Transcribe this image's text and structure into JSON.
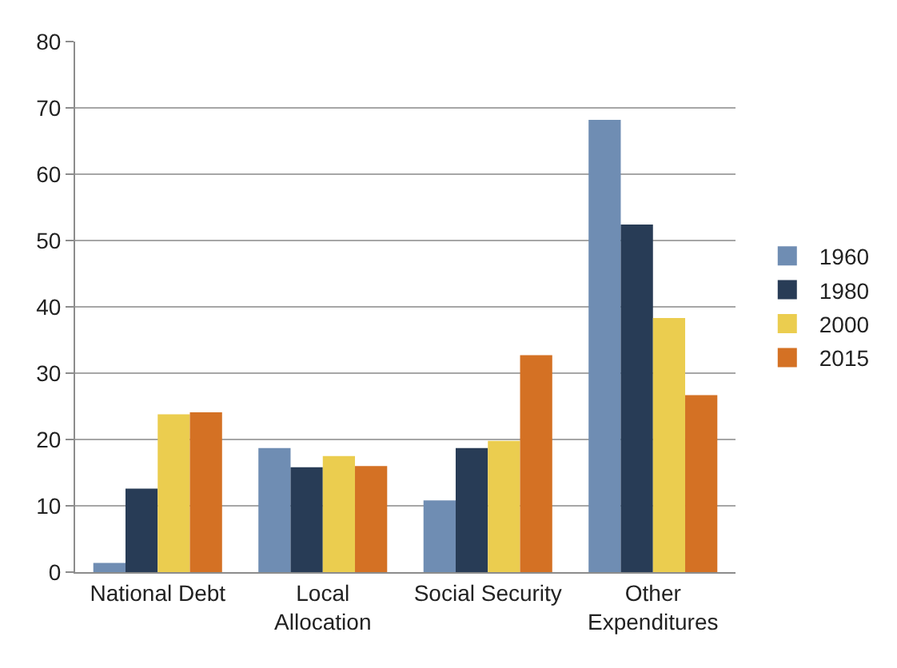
{
  "chart_data": {
    "type": "bar",
    "categories": [
      "National Debt",
      "Local\nAllocation",
      "Social Security",
      "Other\nExpenditures"
    ],
    "series": [
      {
        "name": "1960",
        "color": "#6f8db3",
        "values": [
          1.4,
          18.7,
          10.8,
          68.2
        ]
      },
      {
        "name": "1980",
        "color": "#283c56",
        "values": [
          12.6,
          15.8,
          18.7,
          52.4
        ]
      },
      {
        "name": "2000",
        "color": "#ebcd4f",
        "values": [
          23.8,
          17.5,
          19.8,
          38.3
        ]
      },
      {
        "name": "2015",
        "color": "#d47124",
        "values": [
          24.1,
          16.0,
          32.7,
          26.7
        ]
      }
    ],
    "ylim": [
      0,
      80
    ],
    "yticks": [
      0,
      10,
      20,
      30,
      40,
      50,
      60,
      70,
      80
    ],
    "grid": "y",
    "legend": "right"
  }
}
